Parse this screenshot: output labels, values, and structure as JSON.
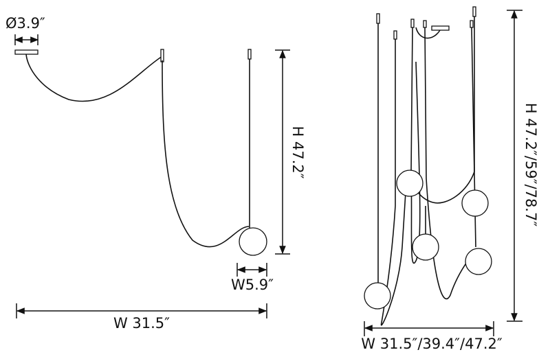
{
  "left": {
    "canopy_diameter": "Ø3.9″",
    "height": "H 47.2″",
    "shade_width": "W5.9″",
    "width": "W 31.5″"
  },
  "right": {
    "height": "H 47.2″/59″/78.7″",
    "width": "W 31.5″/39.4″/47.2″"
  }
}
